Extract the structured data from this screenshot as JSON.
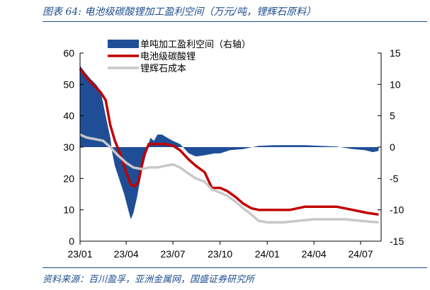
{
  "figure": {
    "title": "图表 64:  电池级碳酸锂加工盈利空间（万元/吨，锂辉石原料）",
    "source": "资料来源：百川盈孚，亚洲金属网，国盛证券研究所"
  },
  "colors": {
    "bar": "#1f4e96",
    "li2co3": "#c00000",
    "spodumene": "#c8c8c8"
  },
  "chart_data": {
    "type": "area",
    "title": "图表 64:  电池级碳酸锂加工盈利空间（万元/吨，锂辉石原料）",
    "x_tick_labels": [
      "23/01",
      "23/04",
      "23/07",
      "23/10",
      "24/01",
      "24/04",
      "24/07"
    ],
    "x_tick_dates": [
      "2023-01-01",
      "2023-04-01",
      "2023-07-01",
      "2023-10-01",
      "2024-01-01",
      "2024-04-01",
      "2024-07-01"
    ],
    "xlim": [
      "2023-01-01",
      "2024-08-10"
    ],
    "left_axis": {
      "ylim": [
        0,
        60
      ],
      "ticks": [
        0,
        10,
        20,
        30,
        40,
        50,
        60
      ]
    },
    "right_axis": {
      "ylim": [
        -15,
        15
      ],
      "ticks": [
        -15,
        -10,
        -5,
        0,
        5,
        10,
        15
      ]
    },
    "legend_position": "top-center",
    "series": [
      {
        "name": "单吨加工盈利空间（右轴）",
        "type": "area",
        "axis": "right",
        "points": [
          [
            "2023-01-01",
            13.0
          ],
          [
            "2023-01-10",
            12.0
          ],
          [
            "2023-01-20",
            11.0
          ],
          [
            "2023-02-01",
            10.0
          ],
          [
            "2023-02-10",
            9.0
          ],
          [
            "2023-02-20",
            5.0
          ],
          [
            "2023-03-01",
            1.5
          ],
          [
            "2023-03-05",
            -1.0
          ],
          [
            "2023-03-10",
            -3.0
          ],
          [
            "2023-03-20",
            -5.5
          ],
          [
            "2023-03-28",
            -7.5
          ],
          [
            "2023-04-05",
            -10.0
          ],
          [
            "2023-04-10",
            -11.5
          ],
          [
            "2023-04-15",
            -10.5
          ],
          [
            "2023-04-22",
            -8.0
          ],
          [
            "2023-05-01",
            -4.0
          ],
          [
            "2023-05-10",
            -1.0
          ],
          [
            "2023-05-18",
            1.5
          ],
          [
            "2023-05-25",
            1.0
          ],
          [
            "2023-06-01",
            2.0
          ],
          [
            "2023-06-10",
            2.0
          ],
          [
            "2023-06-20",
            1.5
          ],
          [
            "2023-07-01",
            1.0
          ],
          [
            "2023-07-15",
            0.5
          ],
          [
            "2023-08-01",
            -1.0
          ],
          [
            "2023-08-15",
            -1.5
          ],
          [
            "2023-09-01",
            -1.3
          ],
          [
            "2023-09-20",
            -1.0
          ],
          [
            "2023-10-01",
            -1.0
          ],
          [
            "2023-10-20",
            -0.5
          ],
          [
            "2023-11-15",
            -0.3
          ],
          [
            "2023-12-15",
            0.2
          ],
          [
            "2024-01-15",
            0.3
          ],
          [
            "2024-02-15",
            0.3
          ],
          [
            "2024-03-15",
            0.3
          ],
          [
            "2024-04-15",
            0.2
          ],
          [
            "2024-05-15",
            0.1
          ],
          [
            "2024-06-15",
            -0.3
          ],
          [
            "2024-07-10",
            -0.5
          ],
          [
            "2024-07-25",
            -0.8
          ],
          [
            "2024-08-05",
            -0.6
          ]
        ]
      },
      {
        "name": "电池级碳酸锂",
        "type": "line",
        "axis": "left",
        "points": [
          [
            "2023-01-01",
            55.0
          ],
          [
            "2023-01-10",
            53.0
          ],
          [
            "2023-01-20",
            51.0
          ],
          [
            "2023-02-01",
            49.0
          ],
          [
            "2023-02-10",
            47.5
          ],
          [
            "2023-02-20",
            45.0
          ],
          [
            "2023-03-01",
            37.0
          ],
          [
            "2023-03-10",
            32.0
          ],
          [
            "2023-03-20",
            28.0
          ],
          [
            "2023-04-01",
            22.0
          ],
          [
            "2023-04-10",
            18.0
          ],
          [
            "2023-04-18",
            17.5
          ],
          [
            "2023-04-25",
            19.0
          ],
          [
            "2023-05-05",
            27.0
          ],
          [
            "2023-05-15",
            31.0
          ],
          [
            "2023-06-01",
            31.0
          ],
          [
            "2023-06-15",
            31.0
          ],
          [
            "2023-07-01",
            30.5
          ],
          [
            "2023-07-15",
            29.0
          ],
          [
            "2023-08-01",
            26.0
          ],
          [
            "2023-08-15",
            24.0
          ],
          [
            "2023-09-01",
            22.0
          ],
          [
            "2023-09-15",
            17.0
          ],
          [
            "2023-10-01",
            17.0
          ],
          [
            "2023-10-15",
            16.0
          ],
          [
            "2023-11-01",
            14.0
          ],
          [
            "2023-11-15",
            12.0
          ],
          [
            "2023-12-01",
            10.5
          ],
          [
            "2023-12-15",
            10.0
          ],
          [
            "2024-01-15",
            10.0
          ],
          [
            "2024-02-15",
            10.0
          ],
          [
            "2024-03-15",
            11.0
          ],
          [
            "2024-04-15",
            11.0
          ],
          [
            "2024-05-15",
            11.0
          ],
          [
            "2024-06-15",
            10.0
          ],
          [
            "2024-07-15",
            9.0
          ],
          [
            "2024-08-05",
            8.5
          ]
        ]
      },
      {
        "name": "锂辉石成本",
        "type": "line",
        "axis": "left",
        "points": [
          [
            "2023-01-01",
            34.0
          ],
          [
            "2023-01-15",
            33.0
          ],
          [
            "2023-02-01",
            32.5
          ],
          [
            "2023-02-15",
            32.0
          ],
          [
            "2023-03-01",
            30.0
          ],
          [
            "2023-03-15",
            27.5
          ],
          [
            "2023-04-01",
            25.0
          ],
          [
            "2023-04-15",
            23.5
          ],
          [
            "2023-05-01",
            23.0
          ],
          [
            "2023-05-15",
            23.5
          ],
          [
            "2023-06-01",
            23.5
          ],
          [
            "2023-06-15",
            24.0
          ],
          [
            "2023-07-01",
            24.5
          ],
          [
            "2023-07-15",
            23.5
          ],
          [
            "2023-08-01",
            21.5
          ],
          [
            "2023-08-15",
            20.0
          ],
          [
            "2023-09-01",
            19.0
          ],
          [
            "2023-09-15",
            16.5
          ],
          [
            "2023-10-01",
            15.5
          ],
          [
            "2023-10-15",
            14.5
          ],
          [
            "2023-11-01",
            12.5
          ],
          [
            "2023-11-15",
            10.5
          ],
          [
            "2023-12-01",
            8.5
          ],
          [
            "2023-12-15",
            6.5
          ],
          [
            "2024-01-01",
            6.0
          ],
          [
            "2024-02-01",
            6.0
          ],
          [
            "2024-03-01",
            6.5
          ],
          [
            "2024-04-01",
            7.0
          ],
          [
            "2024-05-01",
            7.0
          ],
          [
            "2024-06-01",
            7.0
          ],
          [
            "2024-07-01",
            6.5
          ],
          [
            "2024-08-05",
            6.0
          ]
        ]
      }
    ]
  }
}
